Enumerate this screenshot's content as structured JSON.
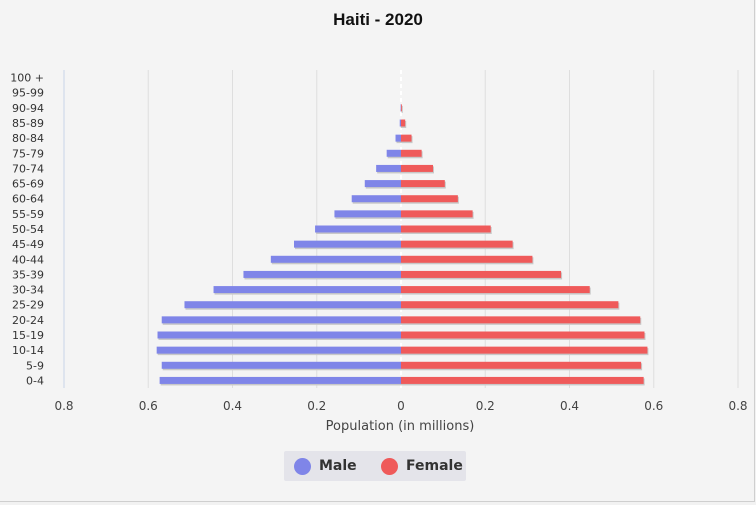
{
  "chart_data": {
    "type": "bar",
    "title": "Haiti - 2020",
    "xlabel": "Population (in millions)",
    "ylabel": "",
    "xlim": [
      -0.8,
      0.8
    ],
    "x_ticks": [
      "0.8",
      "0.6",
      "0.4",
      "0.2",
      "0",
      "0.2",
      "0.4",
      "0.6",
      "0.8"
    ],
    "categories": [
      "100 +",
      "95-99",
      "90-94",
      "85-89",
      "80-84",
      "75-79",
      "70-74",
      "65-69",
      "60-64",
      "55-59",
      "50-54",
      "45-49",
      "40-44",
      "35-39",
      "30-34",
      "25-29",
      "20-24",
      "15-19",
      "10-14",
      "5-9",
      "0-4"
    ],
    "series": [
      {
        "name": "Male",
        "color": "#7f85e8",
        "values": [
          0.0,
          0.0,
          0.001,
          0.003,
          0.013,
          0.034,
          0.059,
          0.086,
          0.117,
          0.158,
          0.204,
          0.254,
          0.309,
          0.374,
          0.445,
          0.514,
          0.568,
          0.578,
          0.58,
          0.568,
          0.573
        ]
      },
      {
        "name": "Female",
        "color": "#ef5a5a",
        "values": [
          0.0,
          0.0,
          0.002,
          0.01,
          0.025,
          0.049,
          0.076,
          0.104,
          0.135,
          0.17,
          0.213,
          0.265,
          0.312,
          0.38,
          0.448,
          0.516,
          0.568,
          0.578,
          0.585,
          0.57,
          0.576
        ]
      }
    ],
    "grid": true,
    "legend_position": "bottom-center"
  },
  "legend": {
    "male_label": "Male",
    "female_label": "Female",
    "male_color": "#7f85e8",
    "female_color": "#ef5a5a"
  }
}
